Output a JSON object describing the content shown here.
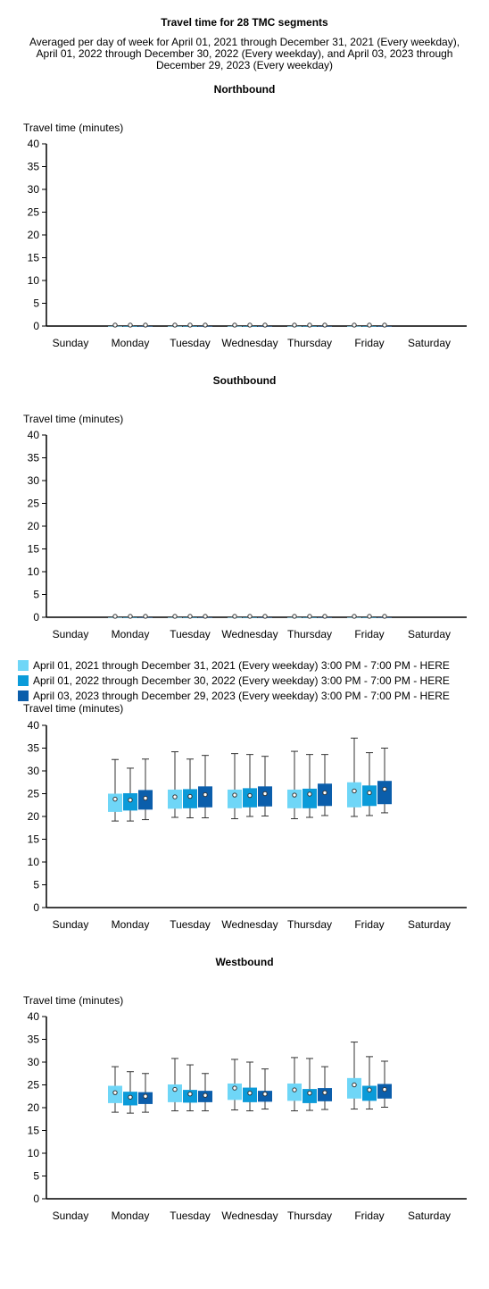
{
  "header": {
    "title": "Travel time for 28 TMC segments",
    "subtitle_lines": [
      "Averaged per day of week for April 01, 2021 through December 31, 2021 (Every weekday),",
      "April 01, 2022 through December 30, 2022 (Every weekday), and April 03, 2023 through",
      "December 29, 2023 (Every weekday)"
    ]
  },
  "legend": [
    {
      "label": "April 01, 2021 through December 31, 2021 (Every weekday) 3:00 PM - 7:00 PM - HERE",
      "color": "#6fd6f7"
    },
    {
      "label": "April 01, 2022 through December 30, 2022 (Every weekday) 3:00 PM - 7:00 PM - HERE",
      "color": "#0b9bd9"
    },
    {
      "label": "April 03, 2023 through December 29, 2023 (Every weekday) 3:00 PM - 7:00 PM - HERE",
      "color": "#0b5eab"
    }
  ],
  "chart_data": [
    {
      "type": "box",
      "title": "Northbound",
      "ylabel": "Travel time (minutes)",
      "ylim": [
        0,
        40
      ],
      "yticks": [
        "0",
        "5",
        "10",
        "15",
        "20",
        "25",
        "30",
        "35",
        "40"
      ],
      "categories": [
        "Sunday",
        "Monday",
        "Tuesday",
        "Wednesday",
        "Thursday",
        "Friday",
        "Saturday"
      ],
      "series": [
        {
          "name": "April 01, 2021 through December 31, 2021 (Every weekday) 3:00 PM - 7:00 PM - HERE",
          "boxes": [
            null,
            {
              "min": 0,
              "q1": 0,
              "median": 0,
              "q3": 0,
              "max": 0,
              "mean": 0.2
            },
            {
              "min": 0,
              "q1": 0,
              "median": 0,
              "q3": 0,
              "max": 0,
              "mean": 0.2
            },
            {
              "min": 0,
              "q1": 0,
              "median": 0,
              "q3": 0,
              "max": 0,
              "mean": 0.2
            },
            {
              "min": 0,
              "q1": 0,
              "median": 0,
              "q3": 0,
              "max": 0,
              "mean": 0.2
            },
            {
              "min": 0,
              "q1": 0,
              "median": 0,
              "q3": 0,
              "max": 0,
              "mean": 0.2
            },
            null
          ]
        },
        {
          "name": "April 01, 2022 through December 30, 2022 (Every weekday) 3:00 PM - 7:00 PM - HERE",
          "boxes": [
            null,
            {
              "min": 0,
              "q1": 0,
              "median": 0,
              "q3": 0,
              "max": 0,
              "mean": 0.2
            },
            {
              "min": 0,
              "q1": 0,
              "median": 0,
              "q3": 0,
              "max": 0,
              "mean": 0.2
            },
            {
              "min": 0,
              "q1": 0,
              "median": 0,
              "q3": 0,
              "max": 0,
              "mean": 0.2
            },
            {
              "min": 0,
              "q1": 0,
              "median": 0,
              "q3": 0,
              "max": 0,
              "mean": 0.2
            },
            {
              "min": 0,
              "q1": 0,
              "median": 0,
              "q3": 0,
              "max": 0,
              "mean": 0.2
            },
            null
          ]
        },
        {
          "name": "April 03, 2023 through December 29, 2023 (Every weekday) 3:00 PM - 7:00 PM - HERE",
          "boxes": [
            null,
            {
              "min": 0,
              "q1": 0,
              "median": 0,
              "q3": 0,
              "max": 0,
              "mean": 0.2
            },
            {
              "min": 0,
              "q1": 0,
              "median": 0,
              "q3": 0,
              "max": 0,
              "mean": 0.2
            },
            {
              "min": 0,
              "q1": 0,
              "median": 0,
              "q3": 0,
              "max": 0,
              "mean": 0.2
            },
            {
              "min": 0,
              "q1": 0,
              "median": 0,
              "q3": 0,
              "max": 0,
              "mean": 0.2
            },
            {
              "min": 0,
              "q1": 0,
              "median": 0,
              "q3": 0,
              "max": 0,
              "mean": 0.2
            },
            null
          ]
        }
      ]
    },
    {
      "type": "box",
      "title": "Southbound",
      "ylabel": "Travel time (minutes)",
      "ylim": [
        0,
        40
      ],
      "yticks": [
        "0",
        "5",
        "10",
        "15",
        "20",
        "25",
        "30",
        "35",
        "40"
      ],
      "categories": [
        "Sunday",
        "Monday",
        "Tuesday",
        "Wednesday",
        "Thursday",
        "Friday",
        "Saturday"
      ],
      "series": [
        {
          "name": "April 01, 2021 through December 31, 2021 (Every weekday) 3:00 PM - 7:00 PM - HERE",
          "boxes": [
            null,
            {
              "min": 0,
              "q1": 0,
              "median": 0,
              "q3": 0,
              "max": 0,
              "mean": 0.2
            },
            {
              "min": 0,
              "q1": 0,
              "median": 0,
              "q3": 0,
              "max": 0,
              "mean": 0.2
            },
            {
              "min": 0,
              "q1": 0,
              "median": 0,
              "q3": 0,
              "max": 0,
              "mean": 0.2
            },
            {
              "min": 0,
              "q1": 0,
              "median": 0,
              "q3": 0,
              "max": 0,
              "mean": 0.2
            },
            {
              "min": 0,
              "q1": 0,
              "median": 0,
              "q3": 0,
              "max": 0,
              "mean": 0.2
            },
            null
          ]
        },
        {
          "name": "April 01, 2022 through December 30, 2022 (Every weekday) 3:00 PM - 7:00 PM - HERE",
          "boxes": [
            null,
            {
              "min": 0,
              "q1": 0,
              "median": 0,
              "q3": 0,
              "max": 0,
              "mean": 0.2
            },
            {
              "min": 0,
              "q1": 0,
              "median": 0,
              "q3": 0,
              "max": 0,
              "mean": 0.2
            },
            {
              "min": 0,
              "q1": 0,
              "median": 0,
              "q3": 0,
              "max": 0,
              "mean": 0.2
            },
            {
              "min": 0,
              "q1": 0,
              "median": 0,
              "q3": 0,
              "max": 0,
              "mean": 0.2
            },
            {
              "min": 0,
              "q1": 0,
              "median": 0,
              "q3": 0,
              "max": 0,
              "mean": 0.2
            },
            null
          ]
        },
        {
          "name": "April 03, 2023 through December 29, 2023 (Every weekday) 3:00 PM - 7:00 PM - HERE",
          "boxes": [
            null,
            {
              "min": 0,
              "q1": 0,
              "median": 0,
              "q3": 0,
              "max": 0,
              "mean": 0.2
            },
            {
              "min": 0,
              "q1": 0,
              "median": 0,
              "q3": 0,
              "max": 0,
              "mean": 0.2
            },
            {
              "min": 0,
              "q1": 0,
              "median": 0,
              "q3": 0,
              "max": 0,
              "mean": 0.2
            },
            {
              "min": 0,
              "q1": 0,
              "median": 0,
              "q3": 0,
              "max": 0,
              "mean": 0.2
            },
            {
              "min": 0,
              "q1": 0,
              "median": 0,
              "q3": 0,
              "max": 0,
              "mean": 0.2
            },
            null
          ]
        }
      ]
    },
    {
      "type": "box",
      "title": "",
      "ylabel": "Travel time (minutes)",
      "ylim": [
        0,
        40
      ],
      "yticks": [
        "0",
        "5",
        "10",
        "15",
        "20",
        "25",
        "30",
        "35",
        "40"
      ],
      "categories": [
        "Sunday",
        "Monday",
        "Tuesday",
        "Wednesday",
        "Thursday",
        "Friday",
        "Saturday"
      ],
      "series": [
        {
          "name": "April 01, 2021 through December 31, 2021 (Every weekday) 3:00 PM - 7:00 PM - HERE",
          "boxes": [
            null,
            {
              "min": 19.0,
              "q1": 21.0,
              "median": 23.5,
              "q3": 25.0,
              "max": 32.5,
              "mean": 23.8
            },
            {
              "min": 19.8,
              "q1": 21.7,
              "median": 24.3,
              "q3": 25.9,
              "max": 34.2,
              "mean": 24.3
            },
            {
              "min": 19.5,
              "q1": 21.8,
              "median": 24.5,
              "q3": 25.9,
              "max": 33.8,
              "mean": 24.7
            },
            {
              "min": 19.5,
              "q1": 21.8,
              "median": 24.5,
              "q3": 25.9,
              "max": 34.3,
              "mean": 24.7
            },
            {
              "min": 20.0,
              "q1": 22.0,
              "median": 25.5,
              "q3": 27.5,
              "max": 37.2,
              "mean": 25.6
            },
            null
          ]
        },
        {
          "name": "April 01, 2022 through December 30, 2022 (Every weekday) 3:00 PM - 7:00 PM - HERE",
          "boxes": [
            null,
            {
              "min": 19.0,
              "q1": 21.3,
              "median": 23.6,
              "q3": 25.1,
              "max": 30.6,
              "mean": 23.6
            },
            {
              "min": 19.7,
              "q1": 21.8,
              "median": 24.4,
              "q3": 26.0,
              "max": 32.6,
              "mean": 24.4
            },
            {
              "min": 20.0,
              "q1": 22.0,
              "median": 24.5,
              "q3": 26.2,
              "max": 33.6,
              "mean": 24.6
            },
            {
              "min": 19.8,
              "q1": 21.8,
              "median": 24.8,
              "q3": 26.1,
              "max": 33.6,
              "mean": 24.9
            },
            {
              "min": 20.2,
              "q1": 22.3,
              "median": 25.0,
              "q3": 26.8,
              "max": 34.0,
              "mean": 25.2
            },
            null
          ]
        },
        {
          "name": "April 03, 2023 through December 29, 2023 (Every weekday) 3:00 PM - 7:00 PM - HERE",
          "boxes": [
            null,
            {
              "min": 19.3,
              "q1": 21.5,
              "median": 24.0,
              "q3": 25.8,
              "max": 32.6,
              "mean": 24.0
            },
            {
              "min": 19.7,
              "q1": 22.0,
              "median": 24.8,
              "q3": 26.6,
              "max": 33.4,
              "mean": 24.8
            },
            {
              "min": 20.1,
              "q1": 22.2,
              "median": 25.0,
              "q3": 26.6,
              "max": 33.2,
              "mean": 25.0
            },
            {
              "min": 20.2,
              "q1": 22.3,
              "median": 25.2,
              "q3": 27.2,
              "max": 33.6,
              "mean": 25.2
            },
            {
              "min": 20.8,
              "q1": 22.7,
              "median": 26.0,
              "q3": 27.8,
              "max": 35.0,
              "mean": 26.0
            },
            null
          ]
        }
      ]
    },
    {
      "type": "box",
      "title": "Westbound",
      "ylabel": "Travel time (minutes)",
      "ylim": [
        0,
        40
      ],
      "yticks": [
        "0",
        "5",
        "10",
        "15",
        "20",
        "25",
        "30",
        "35",
        "40"
      ],
      "categories": [
        "Sunday",
        "Monday",
        "Tuesday",
        "Wednesday",
        "Thursday",
        "Friday",
        "Saturday"
      ],
      "series": [
        {
          "name": "April 01, 2021 through December 31, 2021 (Every weekday) 3:00 PM - 7:00 PM - HERE",
          "boxes": [
            null,
            {
              "min": 19.0,
              "q1": 21.0,
              "median": 23.3,
              "q3": 24.8,
              "max": 29.0,
              "mean": 23.3
            },
            {
              "min": 19.3,
              "q1": 21.2,
              "median": 24.0,
              "q3": 25.1,
              "max": 30.8,
              "mean": 24.0
            },
            {
              "min": 19.5,
              "q1": 21.7,
              "median": 24.3,
              "q3": 25.3,
              "max": 30.6,
              "mean": 24.3
            },
            {
              "min": 19.3,
              "q1": 21.5,
              "median": 23.9,
              "q3": 25.3,
              "max": 31.0,
              "mean": 23.9
            },
            {
              "min": 19.7,
              "q1": 22.0,
              "median": 25.0,
              "q3": 26.5,
              "max": 34.4,
              "mean": 25.0
            },
            null
          ]
        },
        {
          "name": "April 01, 2022 through December 30, 2022 (Every weekday) 3:00 PM - 7:00 PM - HERE",
          "boxes": [
            null,
            {
              "min": 18.8,
              "q1": 20.5,
              "median": 22.3,
              "q3": 23.5,
              "max": 27.9,
              "mean": 22.3
            },
            {
              "min": 19.3,
              "q1": 21.1,
              "median": 23.0,
              "q3": 23.9,
              "max": 29.4,
              "mean": 23.0
            },
            {
              "min": 19.3,
              "q1": 21.2,
              "median": 23.2,
              "q3": 24.4,
              "max": 30.0,
              "mean": 23.2
            },
            {
              "min": 19.4,
              "q1": 21.0,
              "median": 23.2,
              "q3": 24.1,
              "max": 30.8,
              "mean": 23.2
            },
            {
              "min": 19.7,
              "q1": 21.5,
              "median": 23.9,
              "q3": 24.8,
              "max": 31.2,
              "mean": 23.9
            },
            null
          ]
        },
        {
          "name": "April 03, 2023 through December 29, 2023 (Every weekday) 3:00 PM - 7:00 PM - HERE",
          "boxes": [
            null,
            {
              "min": 19.0,
              "q1": 20.8,
              "median": 22.5,
              "q3": 23.4,
              "max": 27.5,
              "mean": 22.5
            },
            {
              "min": 19.3,
              "q1": 21.2,
              "median": 22.7,
              "q3": 23.7,
              "max": 27.5,
              "mean": 22.7
            },
            {
              "min": 19.7,
              "q1": 21.3,
              "median": 23.0,
              "q3": 23.7,
              "max": 28.5,
              "mean": 23.0
            },
            {
              "min": 19.6,
              "q1": 21.4,
              "median": 23.3,
              "q3": 24.3,
              "max": 29.0,
              "mean": 23.3
            },
            {
              "min": 20.1,
              "q1": 22.0,
              "median": 24.0,
              "q3": 25.2,
              "max": 30.2,
              "mean": 24.0
            },
            null
          ]
        }
      ]
    }
  ]
}
